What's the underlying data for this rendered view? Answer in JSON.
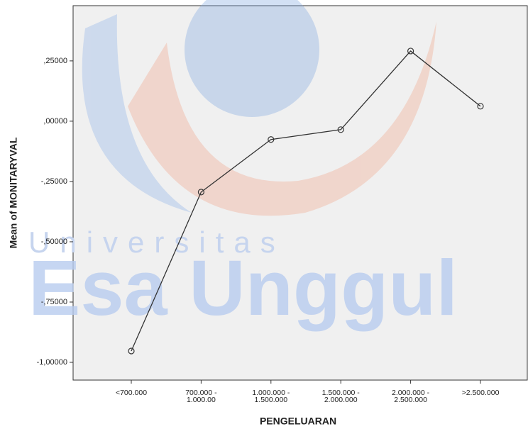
{
  "chart_data": {
    "type": "line",
    "xlabel": "PENGELUARAN",
    "ylabel": "Mean of MONITARYVAL",
    "categories": [
      "<700.000",
      "700.000 -\n1.000.00",
      "1.000.000 -\n1.500.000",
      "1.500.000 -\n2.000.000",
      "2.000.000 -\n2.500.000",
      ">2.500.000"
    ],
    "values": [
      -0.953,
      -0.294,
      -0.076,
      -0.035,
      0.291,
      0.062
    ],
    "color": "#333333",
    "ylim": [
      -1.0735,
      0.479
    ],
    "yticks": [
      {
        "value": 0.25,
        "label": ",25000"
      },
      {
        "value": 0,
        "label": ",00000"
      },
      {
        "value": -0.25,
        "label": "-,25000"
      },
      {
        "value": -0.5,
        "label": "-,50000"
      },
      {
        "value": -0.75,
        "label": "-,75000"
      },
      {
        "value": -1,
        "label": "-1,00000"
      }
    ],
    "grid": false,
    "watermark": [
      "Universitas",
      "Esa Unggul"
    ]
  }
}
